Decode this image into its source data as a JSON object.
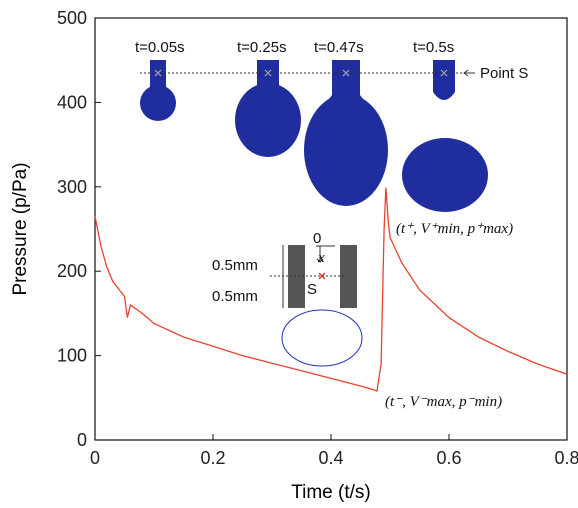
{
  "chart_data": {
    "type": "line",
    "x_label": "Time (t/s)",
    "y_label": "Pressure (p/Pa)",
    "x": [
      0,
      0.01,
      0.02,
      0.03,
      0.05,
      0.055,
      0.06,
      0.08,
      0.1,
      0.15,
      0.2,
      0.25,
      0.3,
      0.35,
      0.4,
      0.45,
      0.47,
      0.478,
      0.485,
      0.49,
      0.493,
      0.497,
      0.5,
      0.51,
      0.52,
      0.55,
      0.6,
      0.65,
      0.7,
      0.75,
      0.8
    ],
    "values": [
      265,
      230,
      205,
      188,
      170,
      145,
      160,
      150,
      138,
      122,
      111,
      100,
      91,
      82,
      73,
      64,
      60,
      58,
      90,
      250,
      299,
      260,
      240,
      225,
      210,
      178,
      145,
      122,
      105,
      90,
      78
    ],
    "color": "#e8442e",
    "xlim": [
      0,
      0.8
    ],
    "xticks": [
      0,
      0.2,
      0.4,
      0.6,
      0.8
    ],
    "ylim": [
      0,
      500
    ],
    "yticks": [
      0,
      100,
      200,
      300,
      400,
      500
    ],
    "annotations": [
      "t=0.05s",
      "t=0.25s",
      "t=0.47s",
      "t=0.5s",
      "Point S",
      "(t⁺, V⁺min, p⁺max)",
      "(t⁻, V⁻max, p⁻min)",
      "0.5mm",
      "0.5mm",
      "S",
      "0",
      "x"
    ]
  }
}
